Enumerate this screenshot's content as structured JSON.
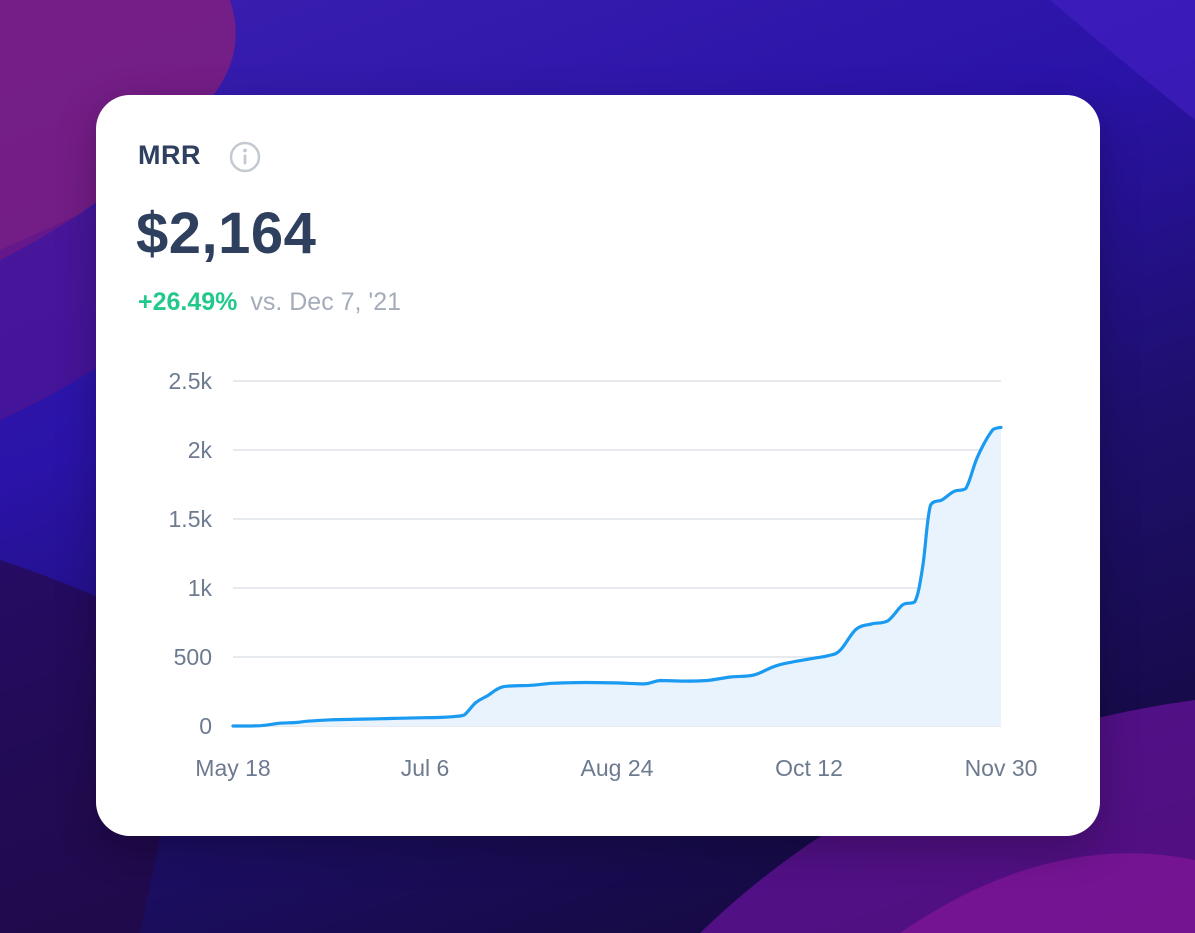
{
  "card": {
    "title": "MRR",
    "value": "$2,164",
    "change_pct": "+26.49%",
    "change_ref": "vs. Dec 7, '21"
  },
  "icons": {
    "info": "info-circle-icon"
  },
  "colors": {
    "line": "#1a9af0",
    "area": "#e8f3fd",
    "positive": "#22c98a",
    "text": "#2f3f5e",
    "muted": "#a5acb9",
    "grid": "#dde2e9"
  },
  "chart_data": {
    "type": "area",
    "title": "",
    "xlabel": "",
    "ylabel": "",
    "ylim": [
      0,
      2500
    ],
    "y_ticks": [
      0,
      500,
      1000,
      1500,
      2000,
      2500
    ],
    "y_tick_labels": [
      "0",
      "500",
      "1k",
      "1.5k",
      "2k",
      "2.5k"
    ],
    "x_ticks": [
      "May 18",
      "Jul 6",
      "Aug 24",
      "Oct 12",
      "Nov 30"
    ],
    "x_range": [
      "2022-05-18",
      "2022-11-30"
    ],
    "grid": true,
    "legend": "none",
    "series": [
      {
        "points": [
          [
            "2022-05-18",
            0
          ],
          [
            "2022-05-25",
            2
          ],
          [
            "2022-05-30",
            20
          ],
          [
            "2022-06-03",
            25
          ],
          [
            "2022-06-06",
            35
          ],
          [
            "2022-06-12",
            45
          ],
          [
            "2022-06-20",
            50
          ],
          [
            "2022-06-28",
            55
          ],
          [
            "2022-07-06",
            60
          ],
          [
            "2022-07-10",
            62
          ],
          [
            "2022-07-14",
            70
          ],
          [
            "2022-07-16",
            80
          ],
          [
            "2022-07-19",
            170
          ],
          [
            "2022-07-22",
            220
          ],
          [
            "2022-07-26",
            285
          ],
          [
            "2022-08-02",
            295
          ],
          [
            "2022-08-08",
            310
          ],
          [
            "2022-08-16",
            315
          ],
          [
            "2022-08-24",
            312
          ],
          [
            "2022-08-31",
            305
          ],
          [
            "2022-09-04",
            330
          ],
          [
            "2022-09-10",
            325
          ],
          [
            "2022-09-16",
            330
          ],
          [
            "2022-09-22",
            355
          ],
          [
            "2022-09-28",
            370
          ],
          [
            "2022-10-04",
            440
          ],
          [
            "2022-10-12",
            485
          ],
          [
            "2022-10-17",
            510
          ],
          [
            "2022-10-20",
            550
          ],
          [
            "2022-10-24",
            700
          ],
          [
            "2022-10-28",
            740
          ],
          [
            "2022-11-01",
            760
          ],
          [
            "2022-11-05",
            880
          ],
          [
            "2022-11-08",
            900
          ],
          [
            "2022-11-10",
            1150
          ],
          [
            "2022-11-12",
            1600
          ],
          [
            "2022-11-15",
            1640
          ],
          [
            "2022-11-18",
            1700
          ],
          [
            "2022-11-21",
            1720
          ],
          [
            "2022-11-24",
            1950
          ],
          [
            "2022-11-28",
            2150
          ],
          [
            "2022-11-30",
            2164
          ]
        ]
      }
    ]
  }
}
